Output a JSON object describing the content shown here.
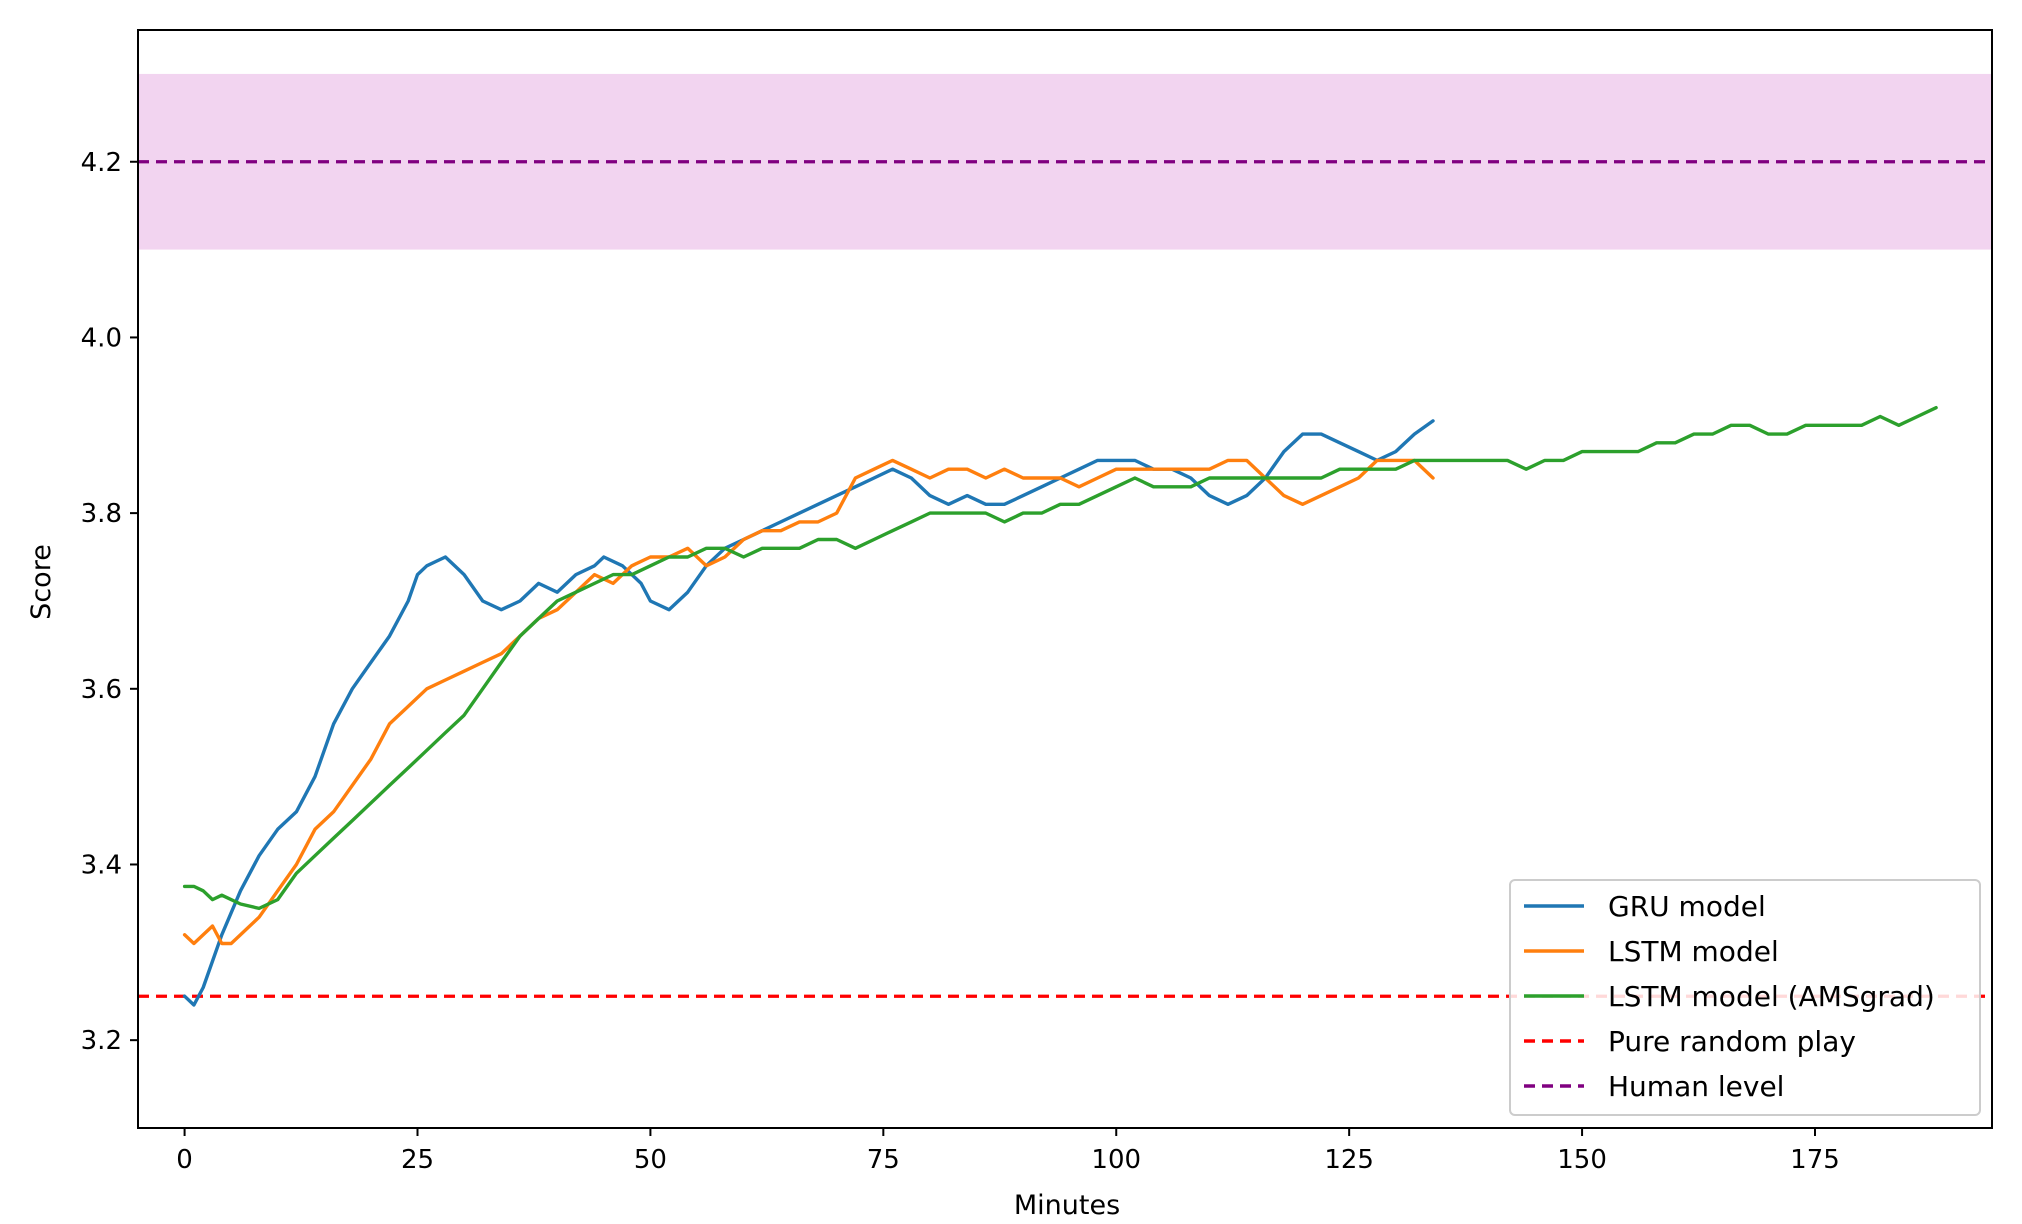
{
  "chart_data": {
    "type": "line",
    "title": "",
    "xlabel": "Minutes",
    "ylabel": "Score",
    "xlim": [
      -5,
      194
    ],
    "ylim": [
      3.1,
      4.35
    ],
    "x_ticks": [
      0,
      25,
      50,
      75,
      100,
      125,
      150,
      175
    ],
    "x_tick_labels": [
      "0",
      "25",
      "50",
      "75",
      "100",
      "125",
      "150",
      "175"
    ],
    "y_ticks": [
      3.2,
      3.4,
      3.6,
      3.8,
      4.0,
      4.2
    ],
    "y_tick_labels": [
      "3.2",
      "3.4",
      "3.6",
      "3.8",
      "4.0",
      "4.2"
    ],
    "grid": false,
    "legend_position": "bottom-right",
    "colors": {
      "gru": "#1f77b4",
      "lstm": "#ff7f0e",
      "lstm_amsgrad": "#2ca02c",
      "random": "#ff0000",
      "human": "#800080",
      "human_band": "#f2d4f0"
    },
    "series": [
      {
        "name": "GRU model",
        "color": "#1f77b4",
        "x": [
          0,
          1,
          2,
          4,
          6,
          8,
          10,
          12,
          14,
          16,
          18,
          20,
          22,
          24,
          25,
          26,
          27,
          28,
          30,
          32,
          34,
          36,
          38,
          40,
          42,
          44,
          45,
          47,
          49,
          50,
          52,
          54,
          56,
          58,
          60,
          62,
          64,
          66,
          68,
          70,
          72,
          74,
          76,
          78,
          80,
          82,
          84,
          86,
          88,
          90,
          92,
          94,
          96,
          98,
          100,
          102,
          104,
          106,
          108,
          110,
          112,
          114,
          116,
          118,
          120,
          122,
          124,
          126,
          128,
          130,
          132,
          134
        ],
        "values": [
          3.25,
          3.24,
          3.26,
          3.32,
          3.37,
          3.41,
          3.44,
          3.46,
          3.5,
          3.56,
          3.6,
          3.63,
          3.66,
          3.7,
          3.73,
          3.74,
          3.745,
          3.75,
          3.73,
          3.7,
          3.69,
          3.7,
          3.72,
          3.71,
          3.73,
          3.74,
          3.75,
          3.74,
          3.72,
          3.7,
          3.69,
          3.71,
          3.74,
          3.76,
          3.77,
          3.78,
          3.79,
          3.8,
          3.81,
          3.82,
          3.83,
          3.84,
          3.85,
          3.84,
          3.82,
          3.81,
          3.82,
          3.81,
          3.81,
          3.82,
          3.83,
          3.84,
          3.85,
          3.86,
          3.86,
          3.86,
          3.85,
          3.85,
          3.84,
          3.82,
          3.81,
          3.82,
          3.84,
          3.87,
          3.89,
          3.89,
          3.88,
          3.87,
          3.86,
          3.87,
          3.89,
          3.905
        ]
      },
      {
        "name": "LSTM model",
        "color": "#ff7f0e",
        "x": [
          0,
          1,
          2,
          3,
          4,
          5,
          6,
          8,
          10,
          12,
          14,
          16,
          18,
          20,
          22,
          24,
          26,
          28,
          30,
          32,
          34,
          36,
          38,
          40,
          42,
          44,
          46,
          48,
          50,
          52,
          54,
          56,
          58,
          60,
          62,
          64,
          66,
          68,
          70,
          72,
          74,
          76,
          78,
          80,
          82,
          84,
          86,
          88,
          90,
          92,
          94,
          96,
          98,
          100,
          102,
          104,
          106,
          108,
          110,
          112,
          114,
          116,
          118,
          120,
          122,
          124,
          126,
          128,
          130,
          132,
          134
        ],
        "values": [
          3.32,
          3.31,
          3.32,
          3.33,
          3.31,
          3.31,
          3.32,
          3.34,
          3.37,
          3.4,
          3.44,
          3.46,
          3.49,
          3.52,
          3.56,
          3.58,
          3.6,
          3.61,
          3.62,
          3.63,
          3.64,
          3.66,
          3.68,
          3.69,
          3.71,
          3.73,
          3.72,
          3.74,
          3.75,
          3.75,
          3.76,
          3.74,
          3.75,
          3.77,
          3.78,
          3.78,
          3.79,
          3.79,
          3.8,
          3.84,
          3.85,
          3.86,
          3.85,
          3.84,
          3.85,
          3.85,
          3.84,
          3.85,
          3.84,
          3.84,
          3.84,
          3.83,
          3.84,
          3.85,
          3.85,
          3.85,
          3.85,
          3.85,
          3.85,
          3.86,
          3.86,
          3.84,
          3.82,
          3.81,
          3.82,
          3.83,
          3.84,
          3.86,
          3.86,
          3.86,
          3.84
        ]
      },
      {
        "name": "LSTM model (AMSgrad)",
        "color": "#2ca02c",
        "x": [
          0,
          1,
          2,
          3,
          4,
          6,
          8,
          10,
          12,
          14,
          16,
          18,
          20,
          22,
          24,
          26,
          28,
          30,
          32,
          34,
          36,
          38,
          40,
          42,
          44,
          46,
          48,
          50,
          52,
          54,
          56,
          58,
          60,
          62,
          64,
          66,
          68,
          70,
          72,
          74,
          76,
          78,
          80,
          82,
          84,
          86,
          88,
          90,
          92,
          94,
          96,
          98,
          100,
          102,
          104,
          106,
          108,
          110,
          112,
          114,
          116,
          118,
          120,
          122,
          124,
          126,
          128,
          130,
          132,
          134,
          136,
          138,
          140,
          142,
          144,
          146,
          148,
          150,
          152,
          154,
          156,
          158,
          160,
          162,
          164,
          166,
          168,
          170,
          172,
          174,
          176,
          178,
          180,
          182,
          184,
          186,
          188
        ],
        "values": [
          3.375,
          3.375,
          3.37,
          3.36,
          3.365,
          3.355,
          3.35,
          3.36,
          3.39,
          3.41,
          3.43,
          3.45,
          3.47,
          3.49,
          3.51,
          3.53,
          3.55,
          3.57,
          3.6,
          3.63,
          3.66,
          3.68,
          3.7,
          3.71,
          3.72,
          3.73,
          3.73,
          3.74,
          3.75,
          3.75,
          3.76,
          3.76,
          3.75,
          3.76,
          3.76,
          3.76,
          3.77,
          3.77,
          3.76,
          3.77,
          3.78,
          3.79,
          3.8,
          3.8,
          3.8,
          3.8,
          3.79,
          3.8,
          3.8,
          3.81,
          3.81,
          3.82,
          3.83,
          3.84,
          3.83,
          3.83,
          3.83,
          3.84,
          3.84,
          3.84,
          3.84,
          3.84,
          3.84,
          3.84,
          3.85,
          3.85,
          3.85,
          3.85,
          3.86,
          3.86,
          3.86,
          3.86,
          3.86,
          3.86,
          3.85,
          3.86,
          3.86,
          3.87,
          3.87,
          3.87,
          3.87,
          3.88,
          3.88,
          3.89,
          3.89,
          3.9,
          3.9,
          3.89,
          3.89,
          3.9,
          3.9,
          3.9,
          3.9,
          3.91,
          3.9,
          3.91,
          3.92
        ]
      }
    ],
    "reference_lines": [
      {
        "name": "Pure random play",
        "y": 3.25,
        "color": "#ff0000",
        "style": "dashed"
      },
      {
        "name": "Human level",
        "y": 4.2,
        "color": "#800080",
        "style": "dashed",
        "band": [
          4.1,
          4.3
        ]
      }
    ],
    "legend": [
      {
        "label": "GRU model",
        "color": "#1f77b4",
        "style": "solid"
      },
      {
        "label": "LSTM model",
        "color": "#ff7f0e",
        "style": "solid"
      },
      {
        "label": "LSTM model (AMSgrad)",
        "color": "#2ca02c",
        "style": "solid"
      },
      {
        "label": "Pure random play",
        "color": "#ff0000",
        "style": "dashed"
      },
      {
        "label": "Human level",
        "color": "#800080",
        "style": "dashed"
      }
    ]
  }
}
